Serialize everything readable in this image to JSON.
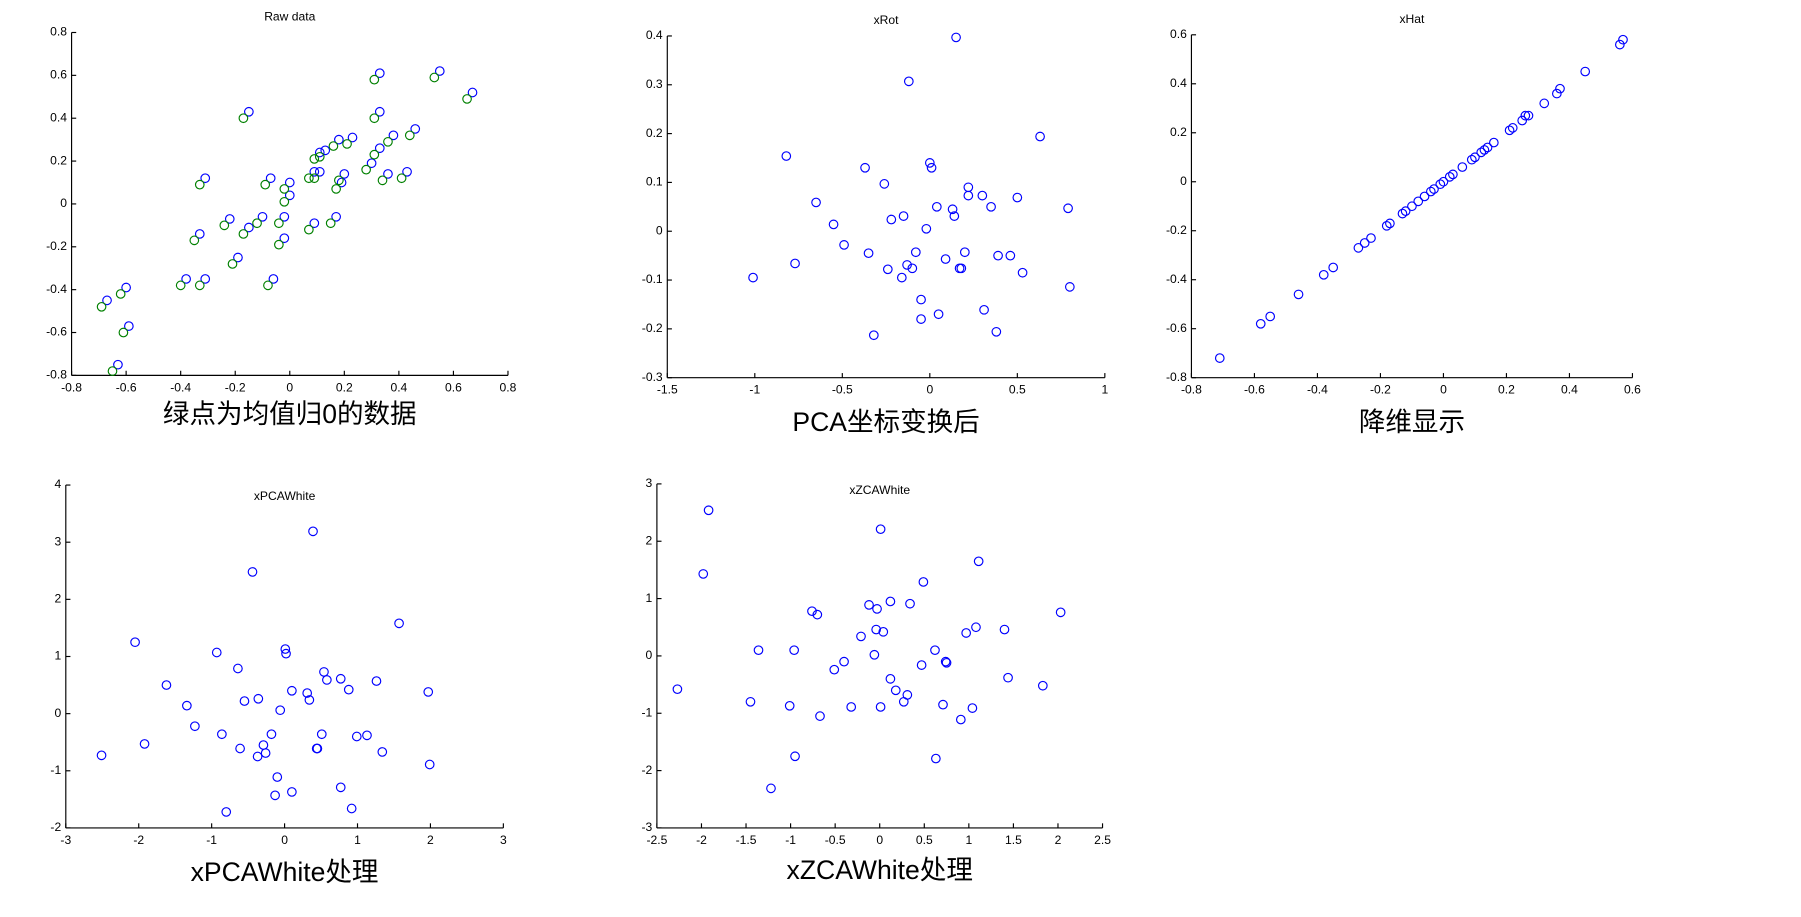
{
  "chart_data": [
    {
      "type": "scatter",
      "title": "Raw data",
      "caption": "绿点为均值归0的数据",
      "xlim": [
        -0.8,
        0.8
      ],
      "ylim": [
        -0.8,
        0.8
      ],
      "xticks": [
        -0.8,
        -0.6,
        -0.4,
        -0.2,
        0,
        0.2,
        0.4,
        0.6,
        0.8
      ],
      "yticks": [
        -0.8,
        -0.6,
        -0.4,
        -0.2,
        0,
        0.2,
        0.4,
        0.6,
        0.8
      ],
      "series": [
        {
          "color": "#0000ff",
          "x": [
            -0.67,
            -0.63,
            -0.6,
            -0.59,
            -0.38,
            -0.33,
            -0.31,
            -0.31,
            -0.22,
            -0.19,
            -0.15,
            -0.15,
            -0.1,
            -0.07,
            -0.06,
            -0.02,
            -0.02,
            0,
            0,
            0.09,
            0.09,
            0.11,
            0.11,
            0.13,
            0.17,
            0.18,
            0.19,
            0.2,
            0.23,
            0.3,
            0.33,
            0.33,
            0.33,
            0.36,
            0.38,
            0.43,
            0.46,
            0.55,
            0.67
          ],
          "y": [
            -0.45,
            -0.75,
            -0.39,
            -0.57,
            -0.35,
            -0.14,
            0.12,
            -0.35,
            -0.07,
            -0.25,
            0.43,
            -0.11,
            -0.06,
            0.12,
            -0.35,
            -0.16,
            -0.06,
            0.1,
            0.04,
            0.15,
            -0.09,
            0.24,
            0.15,
            0.25,
            -0.06,
            0.3,
            0.1,
            0.14,
            0.31,
            0.19,
            0.43,
            0.61,
            0.26,
            0.14,
            0.32,
            0.15,
            0.35,
            0.62,
            0.52
          ]
        },
        {
          "color": "#008000",
          "x": [
            -0.69,
            -0.65,
            -0.62,
            -0.61,
            -0.4,
            -0.35,
            -0.33,
            -0.33,
            -0.24,
            -0.21,
            -0.17,
            -0.17,
            -0.12,
            -0.09,
            -0.08,
            -0.04,
            -0.04,
            -0.02,
            -0.02,
            0.07,
            0.07,
            0.09,
            0.09,
            0.11,
            0.15,
            0.16,
            0.17,
            0.18,
            0.21,
            0.28,
            0.31,
            0.31,
            0.31,
            0.34,
            0.36,
            0.41,
            0.44,
            0.53,
            0.65
          ],
          "y": [
            -0.48,
            -0.78,
            -0.42,
            -0.6,
            -0.38,
            -0.17,
            0.09,
            -0.38,
            -0.1,
            -0.28,
            0.4,
            -0.14,
            -0.09,
            0.09,
            -0.38,
            -0.19,
            -0.09,
            0.07,
            0.01,
            0.12,
            -0.12,
            0.21,
            0.12,
            0.22,
            -0.09,
            0.27,
            0.07,
            0.11,
            0.28,
            0.16,
            0.4,
            0.58,
            0.23,
            0.11,
            0.29,
            0.12,
            0.32,
            0.59,
            0.49
          ]
        }
      ]
    },
    {
      "type": "scatter",
      "title": "xRot",
      "caption": "PCA坐标变换后",
      "xlim": [
        -1.5,
        1
      ],
      "ylim": [
        -0.3,
        0.4
      ],
      "xticks": [
        -1.5,
        -1,
        -0.5,
        0,
        0.5,
        1
      ],
      "yticks": [
        -0.3,
        -0.2,
        -0.1,
        0,
        0.1,
        0.2,
        0.3,
        0.4
      ],
      "series": [
        {
          "color": "#0000ff",
          "x": [
            -1.01,
            -0.82,
            -0.77,
            -0.65,
            -0.55,
            -0.49,
            -0.37,
            -0.35,
            -0.32,
            -0.26,
            -0.24,
            -0.22,
            -0.16,
            -0.15,
            -0.13,
            -0.12,
            -0.1,
            -0.08,
            -0.05,
            -0.05,
            -0.02,
            0,
            0.01,
            0.04,
            0.05,
            0.09,
            0.13,
            0.14,
            0.15,
            0.17,
            0.18,
            0.2,
            0.22,
            0.22,
            0.3,
            0.31,
            0.35,
            0.38,
            0.39,
            0.46,
            0.5,
            0.53,
            0.63,
            0.79,
            0.8
          ],
          "y": [
            -0.095,
            0.154,
            -0.066,
            0.059,
            0.014,
            -0.028,
            0.13,
            -0.045,
            -0.213,
            0.097,
            -0.078,
            0.024,
            -0.095,
            0.031,
            -0.069,
            0.307,
            -0.076,
            -0.043,
            -0.18,
            -0.14,
            0.005,
            0.14,
            0.13,
            0.05,
            -0.17,
            -0.057,
            0.045,
            0.031,
            0.397,
            -0.076,
            -0.076,
            -0.043,
            0.09,
            0.073,
            0.073,
            -0.161,
            0.05,
            -0.206,
            -0.05,
            -0.05,
            0.069,
            -0.085,
            0.194,
            0.047,
            -0.114
          ]
        }
      ]
    },
    {
      "type": "scatter",
      "title": "xHat",
      "caption": "降维显示",
      "xlim": [
        -0.8,
        0.6
      ],
      "ylim": [
        -0.8,
        0.6
      ],
      "xticks": [
        -0.8,
        -0.6,
        -0.4,
        -0.2,
        0,
        0.2,
        0.4,
        0.6
      ],
      "yticks": [
        -0.8,
        -0.6,
        -0.4,
        -0.2,
        0,
        0.2,
        0.4,
        0.6
      ],
      "series": [
        {
          "color": "#0000ff",
          "x": [
            -0.71,
            -0.58,
            -0.55,
            -0.46,
            -0.38,
            -0.35,
            -0.27,
            -0.25,
            -0.23,
            -0.18,
            -0.17,
            -0.13,
            -0.12,
            -0.1,
            -0.08,
            -0.06,
            -0.04,
            -0.03,
            -0.01,
            0,
            0.02,
            0.03,
            0.06,
            0.09,
            0.1,
            0.12,
            0.13,
            0.14,
            0.16,
            0.21,
            0.22,
            0.25,
            0.26,
            0.27,
            0.32,
            0.36,
            0.37,
            0.45,
            0.56,
            0.57
          ],
          "y": [
            -0.72,
            -0.58,
            -0.55,
            -0.46,
            -0.38,
            -0.35,
            -0.27,
            -0.25,
            -0.23,
            -0.18,
            -0.17,
            -0.13,
            -0.12,
            -0.1,
            -0.08,
            -0.06,
            -0.04,
            -0.03,
            -0.01,
            0,
            0.02,
            0.03,
            0.06,
            0.09,
            0.1,
            0.12,
            0.13,
            0.14,
            0.16,
            0.21,
            0.22,
            0.25,
            0.27,
            0.27,
            0.32,
            0.36,
            0.38,
            0.45,
            0.56,
            0.58
          ]
        }
      ]
    },
    {
      "type": "scatter",
      "title": "xPCAWhite",
      "caption": "xPCAWhite处理",
      "xlim": [
        -3,
        3
      ],
      "ylim": [
        -2,
        4
      ],
      "xticks": [
        -3,
        -2,
        -1,
        0,
        1,
        2,
        3
      ],
      "yticks": [
        -2,
        -1,
        0,
        1,
        2,
        3,
        4
      ],
      "series": [
        {
          "color": "#0000ff",
          "x": [
            -2.51,
            -2.05,
            -1.92,
            -1.62,
            -1.34,
            -1.23,
            -0.93,
            -0.86,
            -0.8,
            -0.64,
            -0.61,
            -0.55,
            -0.44,
            -0.37,
            -0.36,
            -0.29,
            -0.26,
            -0.18,
            -0.13,
            -0.1,
            -0.06,
            0.01,
            0.02,
            0.1,
            0.1,
            0.31,
            0.34,
            0.39,
            0.44,
            0.45,
            0.51,
            0.54,
            0.58,
            0.77,
            0.77,
            0.88,
            0.92,
            0.99,
            1.13,
            1.26,
            1.34,
            1.57,
            1.97,
            1.99
          ],
          "y": [
            -0.73,
            1.25,
            -0.53,
            0.5,
            0.14,
            -0.22,
            1.07,
            -0.36,
            -1.72,
            0.79,
            -0.61,
            0.22,
            2.48,
            -0.75,
            0.26,
            -0.55,
            -0.69,
            -0.36,
            -1.43,
            -1.11,
            0.06,
            1.13,
            1.05,
            -1.37,
            0.4,
            0.36,
            0.24,
            3.19,
            -0.61,
            -0.61,
            -0.36,
            0.73,
            0.59,
            0.61,
            -1.29,
            0.42,
            -1.66,
            -0.4,
            -0.38,
            0.57,
            -0.67,
            1.58,
            0.38,
            -0.89
          ]
        }
      ]
    },
    {
      "type": "scatter",
      "title": "xZCAWhite",
      "caption": "xZCAWhite处理",
      "xlim": [
        -2.5,
        2.5
      ],
      "ylim": [
        -3,
        3
      ],
      "xticks": [
        -2.5,
        -2,
        -1.5,
        -1,
        -0.5,
        0,
        0.5,
        1,
        1.5,
        2,
        2.5
      ],
      "yticks": [
        -3,
        -2,
        -1,
        0,
        1,
        2,
        3
      ],
      "series": [
        {
          "color": "#0000ff",
          "x": [
            -2.27,
            -1.98,
            -1.92,
            -1.45,
            -1.36,
            -1.22,
            -1.01,
            -0.96,
            -0.95,
            -0.76,
            -0.7,
            -0.67,
            -0.51,
            -0.4,
            -0.32,
            -0.21,
            -0.12,
            -0.06,
            -0.04,
            -0.03,
            0.01,
            0.01,
            0.04,
            0.12,
            0.12,
            0.18,
            0.27,
            0.31,
            0.34,
            0.47,
            0.49,
            0.62,
            0.63,
            0.71,
            0.74,
            0.75,
            0.91,
            0.97,
            1.04,
            1.08,
            1.11,
            1.4,
            1.44,
            1.83,
            2.03
          ],
          "y": [
            -0.58,
            1.43,
            2.54,
            -0.8,
            0.1,
            -2.31,
            -0.87,
            0.1,
            -1.75,
            0.78,
            0.72,
            -1.05,
            -0.24,
            -0.1,
            -0.89,
            0.34,
            0.89,
            0.02,
            0.46,
            0.82,
            2.21,
            -0.89,
            0.42,
            0.95,
            -0.4,
            -0.6,
            -0.8,
            -0.68,
            0.91,
            -0.16,
            1.29,
            0.1,
            -1.79,
            -0.85,
            -0.1,
            -0.12,
            -1.11,
            0.4,
            -0.91,
            0.5,
            1.65,
            0.46,
            -0.38,
            -0.52,
            0.76
          ]
        }
      ]
    }
  ]
}
